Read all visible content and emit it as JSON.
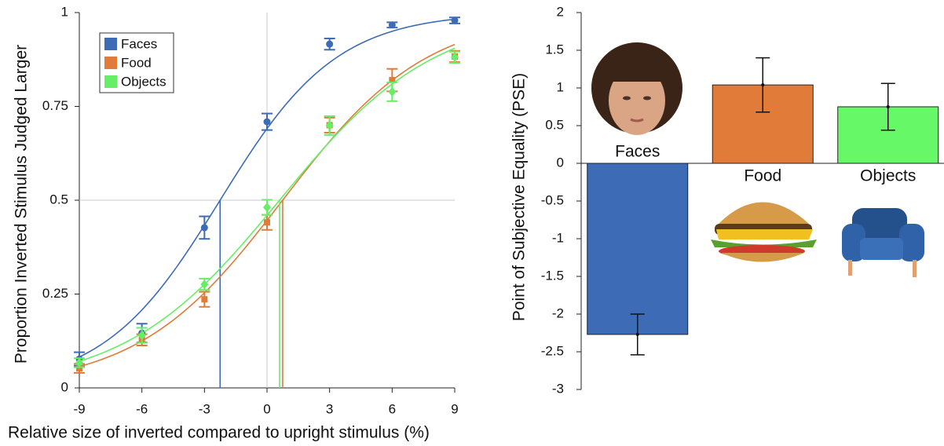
{
  "chart_data": [
    {
      "type": "scatter",
      "x_label": "Relative size of inverted compared to upright stimulus (%)",
      "y_label": "Proportion Inverted Stimulus Judged Larger",
      "x": [
        -9,
        -6,
        -3,
        0,
        3,
        6,
        9
      ],
      "series": [
        {
          "name": "Faces",
          "color": "#3d6bb5",
          "marker": "circle",
          "values": [
            0.077,
            0.146,
            0.427,
            0.709,
            0.916,
            0.967,
            0.979
          ],
          "errors": [
            0.018,
            0.025,
            0.03,
            0.022,
            0.015,
            0.007,
            0.008
          ],
          "fit": {
            "pse": -2.25,
            "slope": 2.8
          }
        },
        {
          "name": "Food",
          "color": "#e07b39",
          "marker": "square",
          "values": [
            0.052,
            0.128,
            0.236,
            0.441,
            0.7,
            0.82,
            0.883
          ],
          "errors": [
            0.012,
            0.015,
            0.02,
            0.02,
            0.02,
            0.03,
            0.015
          ],
          "fit": {
            "pse": 0.75,
            "slope": 3.47
          }
        },
        {
          "name": "Objects",
          "color": "#66ee66",
          "marker": "diamond",
          "values": [
            0.067,
            0.14,
            0.276,
            0.481,
            0.699,
            0.789,
            0.881
          ],
          "errors": [
            0.012,
            0.02,
            0.015,
            0.02,
            0.025,
            0.025,
            0.015
          ],
          "fit": {
            "pse": 0.6,
            "slope": 3.73
          }
        }
      ],
      "reference_lines": {
        "x": 0,
        "y": 0.5
      },
      "xlim": [
        -9,
        9
      ],
      "xticks": [
        -9,
        -6,
        -3,
        0,
        3,
        6,
        9
      ],
      "ylim": [
        0,
        1
      ],
      "yticks": [
        0,
        0.25,
        0.5,
        0.75,
        1
      ],
      "legend": "upper left"
    },
    {
      "type": "bar",
      "y_label": "Point of Subjective Equality (PSE)",
      "categories": [
        "Faces",
        "Food",
        "Objects"
      ],
      "values": [
        -2.27,
        1.04,
        0.75
      ],
      "errors": [
        0.27,
        0.36,
        0.31
      ],
      "colors": [
        "#3d6bb5",
        "#e07b39",
        "#66f866"
      ],
      "ylim": [
        -3,
        2
      ],
      "yticks": [
        -3,
        -2.5,
        -2,
        -1.5,
        -1,
        -0.5,
        0,
        0.5,
        1,
        1.5,
        2
      ]
    }
  ]
}
